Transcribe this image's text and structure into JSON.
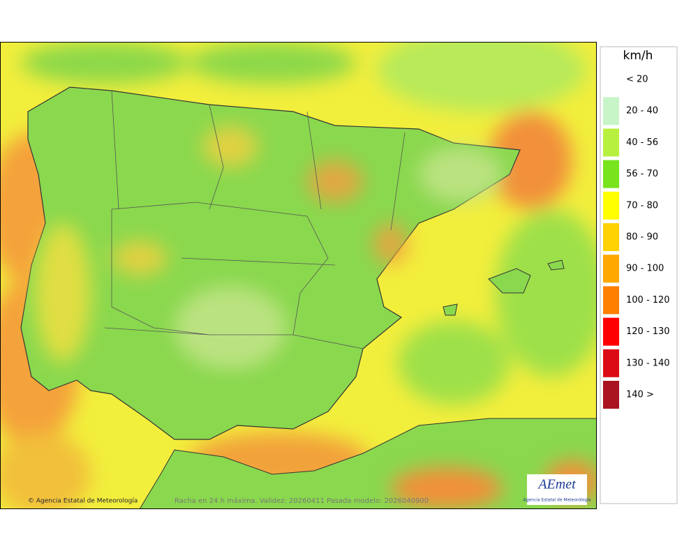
{
  "legend": {
    "unit": "km/h",
    "items": [
      {
        "label": "< 20"
      },
      {
        "label": "20 - 40",
        "color": "#c8f5c8"
      },
      {
        "label": "40 - 56",
        "color": "#b8f040"
      },
      {
        "label": "56 - 70",
        "color": "#78e41e"
      },
      {
        "label": "70 - 80",
        "color": "#ffff00"
      },
      {
        "label": "80 - 90",
        "color": "#ffd200"
      },
      {
        "label": "90 - 100",
        "color": "#ffa800"
      },
      {
        "label": "100 - 120",
        "color": "#ff8000"
      },
      {
        "label": "120 - 130",
        "color": "#ff0000"
      },
      {
        "label": "130 - 140",
        "color": "#dc0a14"
      },
      {
        "label": "140 >",
        "color": "#aa1420"
      }
    ]
  },
  "footer": {
    "credit": "© Agencia Estatal de Meteorología",
    "caption": "Racha en 24 h máxima. Validez: 20260411 Pasada modelo: 2026040900"
  },
  "logo": {
    "name": "AEmet",
    "subtitle": "Agencia Estatal de Meteorología"
  }
}
